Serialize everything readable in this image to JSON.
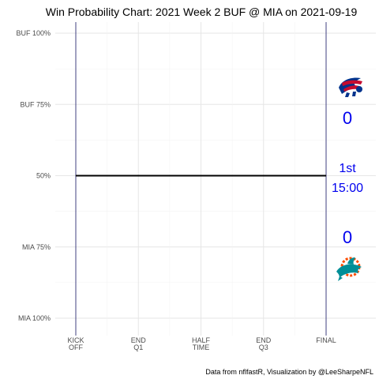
{
  "colors": {
    "away": "#00338D",
    "home": "#008E97",
    "accent": "#0000EE",
    "away_red": "#C60C30",
    "home_orange": "#FC4C02"
  },
  "chart_data": {
    "type": "line",
    "title": "Win Probability Chart: 2021 Week 2 BUF @ MIA on 2021-09-19",
    "caption": "Data from nflfastR, Visualization by @LeeSharpeNFL",
    "x_ticks": [
      {
        "value": 0,
        "label": [
          "KICK",
          "OFF"
        ]
      },
      {
        "value": 900,
        "label": [
          "END",
          "Q1"
        ]
      },
      {
        "value": 1800,
        "label": [
          "HALF",
          "TIME"
        ]
      },
      {
        "value": 2700,
        "label": [
          "END",
          "Q3"
        ]
      },
      {
        "value": 3600,
        "label": [
          "FINAL"
        ]
      }
    ],
    "y_ticks": [
      {
        "value": 1.0,
        "label": "BUF 100%"
      },
      {
        "value": 0.75,
        "label": "BUF 75%"
      },
      {
        "value": 0.5,
        "label": "50%"
      },
      {
        "value": 0.25,
        "label": "MIA 75%"
      },
      {
        "value": 0.0,
        "label": "MIA 100%"
      }
    ],
    "xlim": [
      0,
      3600
    ],
    "ylim": [
      0,
      1
    ],
    "grid": true,
    "series": [
      {
        "points": [
          [
            0,
            0.5
          ],
          [
            3600,
            0.5
          ]
        ]
      }
    ],
    "vertical_markers": [
      0,
      3600
    ]
  },
  "scoreboard": {
    "away_score": "0",
    "home_score": "0",
    "quarter": "1st",
    "clock": "15:00",
    "away_logo": "bills-logo-icon",
    "home_logo": "dolphins-logo-icon"
  }
}
